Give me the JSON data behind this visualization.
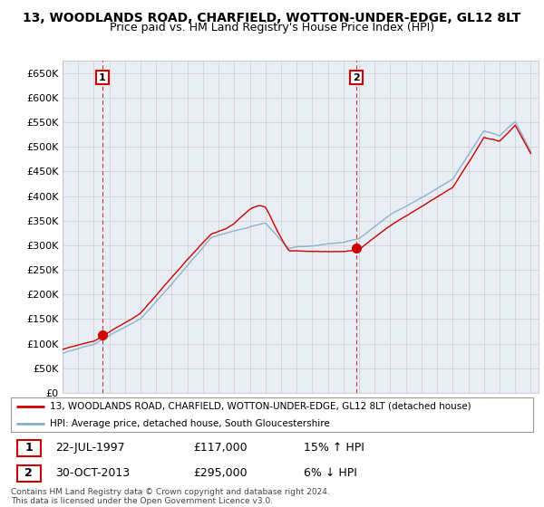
{
  "title": "13, WOODLANDS ROAD, CHARFIELD, WOTTON-UNDER-EDGE, GL12 8LT",
  "subtitle": "Price paid vs. HM Land Registry's House Price Index (HPI)",
  "ylabel_ticks": [
    0,
    50000,
    100000,
    150000,
    200000,
    250000,
    300000,
    350000,
    400000,
    450000,
    500000,
    550000,
    600000,
    650000
  ],
  "ylim": [
    0,
    675000
  ],
  "xlim_start": 1995.3,
  "xlim_end": 2025.5,
  "sale1_x": 1997.55,
  "sale1_y": 117000,
  "sale1_label": "1",
  "sale1_date": "22-JUL-1997",
  "sale1_price": "£117,000",
  "sale1_hpi": "15% ↑ HPI",
  "sale2_x": 2013.83,
  "sale2_y": 295000,
  "sale2_label": "2",
  "sale2_date": "30-OCT-2013",
  "sale2_price": "£295,000",
  "sale2_hpi": "6% ↓ HPI",
  "line_color_property": "#cc0000",
  "line_color_hpi": "#88aacc",
  "marker_color": "#cc0000",
  "grid_color": "#cccccc",
  "chart_bg": "#e8eef4",
  "background_color": "#ffffff",
  "legend_property": "13, WOODLANDS ROAD, CHARFIELD, WOTTON-UNDER-EDGE, GL12 8LT (detached house)",
  "legend_hpi": "HPI: Average price, detached house, South Gloucestershire",
  "footer": "Contains HM Land Registry data © Crown copyright and database right 2024.\nThis data is licensed under the Open Government Licence v3.0.",
  "title_fontsize": 10,
  "subtitle_fontsize": 9
}
